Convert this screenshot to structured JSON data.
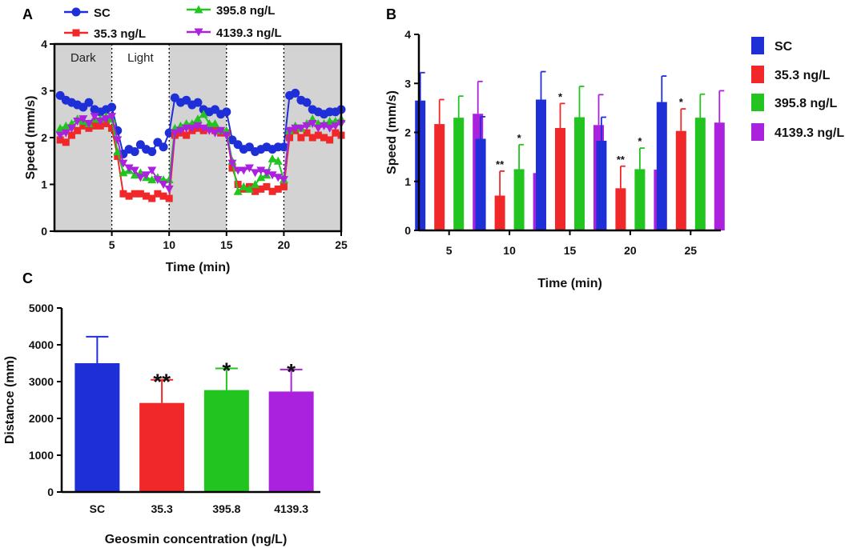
{
  "colors": {
    "sc": "#1f2fd8",
    "c35": "#f0282a",
    "c395": "#22c41f",
    "c4139": "#aa22dd",
    "dark_shade": "#d3d3d3",
    "axis": "#000000"
  },
  "chart_data": [
    {
      "panel": "A",
      "type": "line",
      "xlabel": "Time (min)",
      "ylabel": "Speed (mm/s)",
      "xlim": [
        0,
        25
      ],
      "ylim": [
        0,
        4
      ],
      "xticks": [
        "5",
        "10",
        "15",
        "20",
        "25"
      ],
      "yticks": [
        "0",
        "1",
        "2",
        "3",
        "4"
      ],
      "phases": [
        {
          "label": "Dark",
          "range": [
            0,
            5
          ]
        },
        {
          "label": "Light",
          "range": [
            5,
            10
          ]
        },
        {
          "label": "",
          "range": [
            10,
            15
          ]
        },
        {
          "label": "",
          "range": [
            15,
            20
          ]
        },
        {
          "label": "",
          "range": [
            20,
            25
          ]
        }
      ],
      "x": [
        0.5,
        1,
        1.5,
        2,
        2.5,
        3,
        3.5,
        4,
        4.5,
        5,
        5.5,
        6,
        6.5,
        7,
        7.5,
        8,
        8.5,
        9,
        9.5,
        10,
        10.5,
        11,
        11.5,
        12,
        12.5,
        13,
        13.5,
        14,
        14.5,
        15,
        15.5,
        16,
        16.5,
        17,
        17.5,
        18,
        18.5,
        19,
        19.5,
        20,
        20.5,
        21,
        21.5,
        22,
        22.5,
        23,
        23.5,
        24,
        24.5,
        25
      ],
      "series": [
        {
          "name": "SC",
          "marker": "circle",
          "values": [
            2.9,
            2.8,
            2.75,
            2.7,
            2.65,
            2.75,
            2.6,
            2.55,
            2.6,
            2.65,
            2.15,
            1.65,
            1.75,
            1.7,
            1.85,
            1.75,
            1.7,
            1.9,
            1.8,
            2.1,
            2.85,
            2.75,
            2.8,
            2.7,
            2.75,
            2.6,
            2.55,
            2.6,
            2.5,
            2.55,
            1.95,
            1.85,
            1.75,
            1.8,
            1.7,
            1.75,
            1.8,
            1.75,
            1.8,
            1.8,
            2.9,
            2.95,
            2.8,
            2.75,
            2.6,
            2.55,
            2.5,
            2.55,
            2.55,
            2.6
          ]
        },
        {
          "name": "35.3 ng/L",
          "marker": "square",
          "values": [
            1.95,
            1.9,
            2.05,
            2.15,
            2.25,
            2.2,
            2.25,
            2.25,
            2.3,
            2.2,
            1.6,
            0.8,
            0.75,
            0.8,
            0.8,
            0.75,
            0.7,
            0.8,
            0.75,
            0.7,
            2.05,
            2.1,
            2.05,
            2.15,
            2.2,
            2.15,
            2.2,
            2.15,
            2.1,
            2.1,
            1.35,
            1.0,
            0.9,
            0.95,
            0.85,
            0.9,
            0.95,
            0.85,
            0.9,
            0.95,
            2.0,
            2.15,
            2.0,
            2.1,
            2.0,
            2.05,
            2.0,
            1.95,
            2.1,
            2.05
          ]
        },
        {
          "name": "395.8 ng/L",
          "marker": "triangle-up",
          "values": [
            2.2,
            2.25,
            2.3,
            2.4,
            2.35,
            2.3,
            2.4,
            2.4,
            2.45,
            2.4,
            1.7,
            1.25,
            1.3,
            1.2,
            1.25,
            1.15,
            1.1,
            1.15,
            1.1,
            1.1,
            2.2,
            2.25,
            2.3,
            2.3,
            2.4,
            2.5,
            2.3,
            2.3,
            2.15,
            2.15,
            1.5,
            0.85,
            0.95,
            0.9,
            1.0,
            1.15,
            1.2,
            1.55,
            1.5,
            1.1,
            2.15,
            2.25,
            2.2,
            2.3,
            2.4,
            2.3,
            2.3,
            2.35,
            2.35,
            2.4
          ]
        },
        {
          "name": "4139.3 ng/L",
          "marker": "triangle-down",
          "values": [
            2.05,
            2.1,
            2.2,
            2.35,
            2.4,
            2.3,
            2.45,
            2.35,
            2.4,
            2.45,
            1.95,
            1.45,
            1.35,
            1.3,
            1.15,
            1.2,
            1.3,
            1.1,
            1.0,
            0.9,
            2.1,
            2.15,
            2.2,
            2.2,
            2.25,
            2.2,
            2.15,
            2.1,
            2.15,
            2.05,
            1.45,
            1.3,
            1.3,
            1.35,
            1.25,
            1.3,
            1.25,
            1.2,
            1.15,
            1.1,
            2.15,
            2.2,
            2.2,
            2.25,
            2.3,
            2.2,
            2.25,
            2.2,
            2.25,
            2.3
          ]
        }
      ]
    },
    {
      "panel": "B",
      "type": "bar",
      "xlabel": "Time (min)",
      "ylabel": "Speed (mm/s)",
      "ylim": [
        0,
        4
      ],
      "yticks": [
        "0",
        "1",
        "2",
        "3",
        "4"
      ],
      "categories": [
        "5",
        "10",
        "15",
        "20",
        "25"
      ],
      "series": [
        {
          "name": "SC",
          "values": [
            2.65,
            1.87,
            2.67,
            1.83,
            2.62
          ],
          "err": [
            0.57,
            0.45,
            0.57,
            0.48,
            0.53
          ],
          "stars": [
            "",
            "",
            "",
            "",
            ""
          ]
        },
        {
          "name": "35.3 ng/L",
          "values": [
            2.17,
            0.71,
            2.09,
            0.86,
            2.03
          ],
          "err": [
            0.5,
            0.5,
            0.5,
            0.45,
            0.45
          ],
          "stars": [
            "",
            "**",
            "*",
            "**",
            "*"
          ]
        },
        {
          "name": "395.8 ng/L",
          "values": [
            2.3,
            1.25,
            2.31,
            1.25,
            2.3
          ],
          "err": [
            0.44,
            0.5,
            0.63,
            0.43,
            0.48
          ],
          "stars": [
            "",
            "*",
            "",
            "*",
            ""
          ]
        },
        {
          "name": "4139.3 ng/L",
          "values": [
            2.38,
            1.17,
            2.15,
            1.24,
            2.2
          ],
          "err": [
            0.66,
            0.78,
            0.62,
            0.7,
            0.65
          ],
          "stars": [
            "",
            "*",
            "",
            "*",
            ""
          ]
        }
      ]
    },
    {
      "panel": "C",
      "type": "bar",
      "xlabel": "Geosmin concentration (ng/L)",
      "ylabel": "Distance (mm)",
      "ylim": [
        0,
        5000
      ],
      "yticks": [
        "0",
        "1000",
        "2000",
        "3000",
        "4000",
        "5000"
      ],
      "categories": [
        "SC",
        "35.3",
        "395.8",
        "4139.3"
      ],
      "values": [
        3500,
        2420,
        2770,
        2730
      ],
      "err": [
        720,
        630,
        590,
        600
      ],
      "stars": [
        "",
        "**",
        "*",
        "*"
      ]
    }
  ]
}
